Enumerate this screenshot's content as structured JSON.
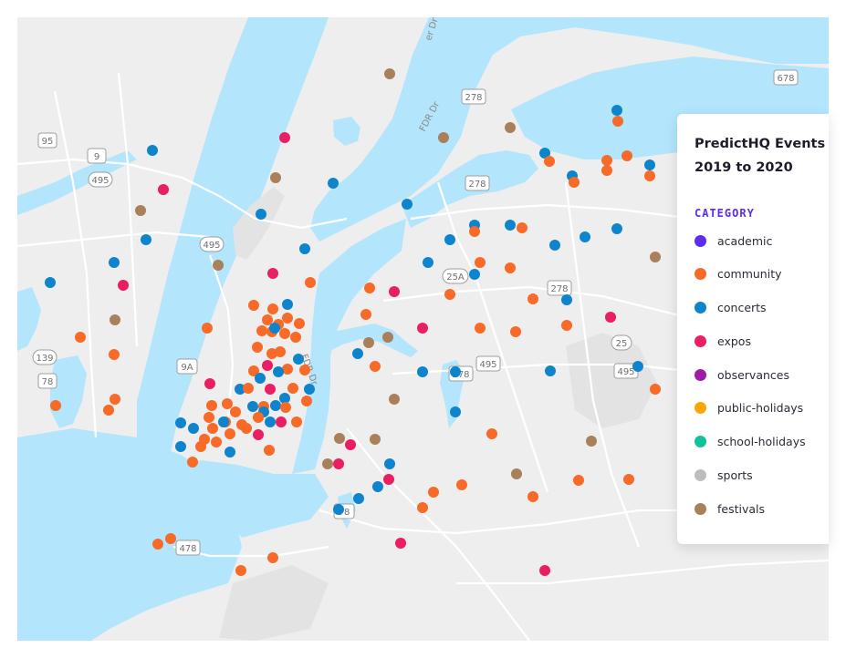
{
  "legend": {
    "title_line1": "PredictHQ Events",
    "title_line2": "2019 to 2020",
    "heading": "CATEGORY",
    "categories": [
      {
        "label": "academic",
        "color": "#5a2df0"
      },
      {
        "label": "community",
        "color": "#f86a28"
      },
      {
        "label": "concerts",
        "color": "#0d84cc"
      },
      {
        "label": "expos",
        "color": "#e91e63"
      },
      {
        "label": "observances",
        "color": "#a01aa8"
      },
      {
        "label": "public-holidays",
        "color": "#ffa500"
      },
      {
        "label": "school-holidays",
        "color": "#0fc29c"
      },
      {
        "label": "sports",
        "color": "#bdbdbd"
      },
      {
        "label": "festivals",
        "color": "#a9805a"
      }
    ]
  },
  "map": {
    "route_shields": [
      "95",
      "9",
      "495",
      "495",
      "139",
      "78",
      "9A",
      "278",
      "278",
      "278",
      "25A",
      "278",
      "495",
      "25",
      "495",
      "678",
      "478",
      "78",
      "278"
    ],
    "road_labels": [
      "FDR Dr",
      "er Dr",
      "FDR Dr"
    ]
  }
}
